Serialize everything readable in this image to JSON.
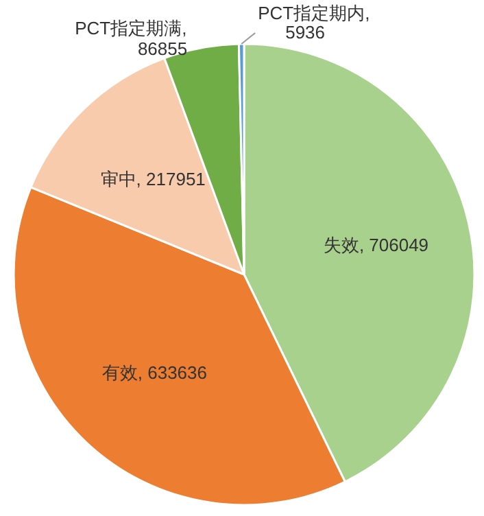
{
  "chart_data": {
    "type": "pie",
    "categories": [
      "失效",
      "有效",
      "审中",
      "PCT指定期满",
      "PCT指定期内"
    ],
    "values": [
      706049,
      633636,
      217951,
      86855,
      5936
    ],
    "value_labels": [
      ", 706049",
      ", 633636",
      ", 217951",
      ", 86855",
      ", 5936"
    ],
    "colors": [
      "#a9d18e",
      "#ed7d31",
      "#f8cbad",
      "#70ad47",
      "#5b9bd5"
    ],
    "legend": false
  }
}
